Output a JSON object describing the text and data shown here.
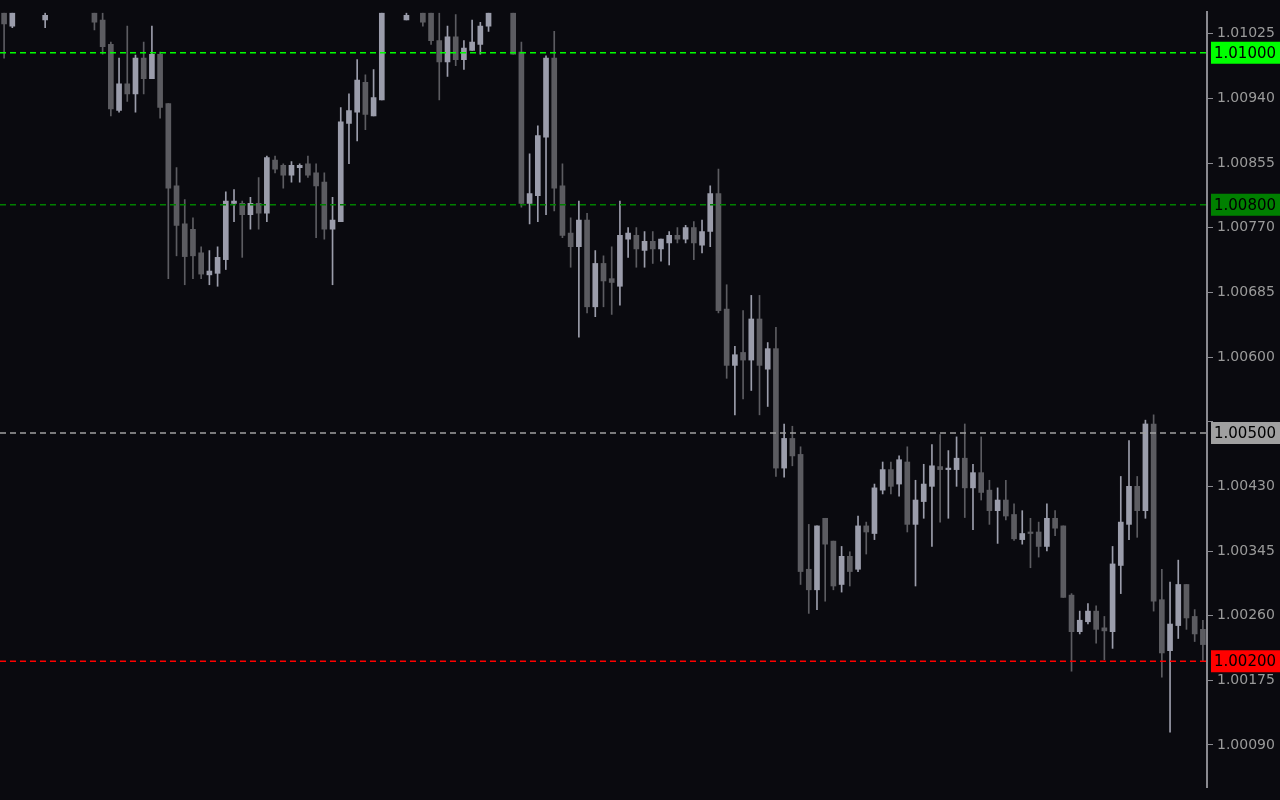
{
  "chart_data": {
    "type": "candlestick",
    "categories": [
      null,
      null,
      null,
      null,
      null,
      null,
      null,
      null,
      null,
      null,
      null,
      null,
      null,
      null,
      null,
      null,
      null,
      null,
      null,
      null,
      null,
      null,
      null,
      null,
      null,
      null,
      null,
      null,
      null,
      null,
      null,
      null,
      null,
      null,
      null,
      null,
      null,
      null,
      null,
      null,
      null,
      null,
      null,
      null,
      null,
      null,
      null,
      null,
      null,
      null,
      null,
      null,
      null,
      null,
      null,
      null,
      null,
      null,
      null,
      null,
      null,
      null,
      null,
      null,
      null,
      null,
      null,
      null,
      null,
      null,
      null,
      null,
      null,
      null,
      null,
      null,
      null,
      null,
      null,
      null,
      null,
      null,
      null,
      null,
      null,
      null,
      null,
      null,
      null,
      null,
      null,
      null,
      null,
      null,
      null,
      null,
      null,
      null,
      null,
      null,
      null,
      null,
      null,
      null,
      null,
      null,
      null,
      null,
      null,
      null,
      null,
      null,
      null,
      null,
      null,
      null,
      null,
      null,
      null,
      null,
      null,
      null,
      null,
      null,
      null,
      null,
      null,
      null,
      null,
      null,
      null,
      null,
      null,
      null,
      null,
      null,
      null,
      null,
      null,
      null,
      null,
      null,
      null,
      null,
      null,
      null,
      null
    ],
    "ohlc": [
      [
        1.01052,
        1.01052,
        1.00993,
        1.01038
      ],
      [
        1.01035,
        1.01052,
        1.01033,
        1.01052
      ],
      null,
      null,
      null,
      [
        1.01043,
        1.01052,
        1.01033,
        1.01049
      ],
      null,
      null,
      null,
      null,
      null,
      [
        1.01052,
        1.01052,
        1.0103,
        1.0104
      ],
      [
        1.01043,
        1.01052,
        1.00998,
        1.01008
      ],
      [
        1.01011,
        1.01014,
        1.00917,
        1.00926
      ],
      [
        1.00924,
        1.00993,
        1.00922,
        1.00959
      ],
      [
        1.00959,
        1.01035,
        1.00936,
        1.00946
      ],
      [
        1.00946,
        1.00997,
        1.00922,
        1.00993
      ],
      [
        1.00993,
        1.01014,
        1.00946,
        1.00966
      ],
      [
        1.00966,
        1.01035,
        1.00966,
        1.00998
      ],
      [
        1.00998,
        1.01001,
        1.00914,
        1.00928
      ],
      [
        1.00933,
        1.00933,
        1.00703,
        1.00822
      ],
      [
        1.00825,
        1.00849,
        1.00733,
        1.00773
      ],
      [
        1.00775,
        1.00807,
        1.00695,
        1.00732
      ],
      [
        1.00768,
        1.00783,
        1.00703,
        1.00733
      ],
      [
        1.00737,
        1.00745,
        1.00703,
        1.00709
      ],
      [
        1.00708,
        1.0074,
        1.00695,
        1.00713
      ],
      [
        1.0071,
        1.00745,
        1.00693,
        1.00731
      ],
      [
        1.00728,
        1.00817,
        1.00715,
        1.00805
      ],
      [
        1.00802,
        1.0082,
        1.00778,
        1.00805
      ],
      [
        1.00802,
        1.00805,
        1.00731,
        1.00787
      ],
      [
        1.00787,
        1.0081,
        1.00768,
        1.00802
      ],
      [
        1.00802,
        1.00836,
        1.00768,
        1.00789
      ],
      [
        1.00789,
        1.00864,
        1.00778,
        1.00862
      ],
      [
        1.00859,
        1.00864,
        1.00842,
        1.00847
      ],
      [
        1.00852,
        1.00854,
        1.00822,
        1.00839
      ],
      [
        1.00839,
        1.00857,
        1.0083,
        1.00852
      ],
      [
        1.00849,
        1.00854,
        1.0083,
        1.00852
      ],
      [
        1.00854,
        1.00864,
        1.00836,
        1.00839
      ],
      [
        1.00842,
        1.00854,
        1.00757,
        1.00825
      ],
      [
        1.0083,
        1.00842,
        1.00755,
        1.00768
      ],
      [
        1.00768,
        1.0081,
        1.00695,
        1.0078
      ],
      [
        1.00778,
        1.00928,
        1.00778,
        1.00909
      ],
      [
        1.00907,
        1.00946,
        1.00854,
        1.00924
      ],
      [
        1.00922,
        1.00991,
        1.00884,
        1.00964
      ],
      [
        1.00961,
        1.00971,
        1.00899,
        1.00919
      ],
      [
        1.00917,
        1.00978,
        1.00917,
        1.00941
      ],
      [
        1.00938,
        1.01052,
        1.00938,
        1.01052
      ],
      null,
      null,
      [
        1.01043,
        1.01052,
        1.01043,
        1.01049
      ],
      null,
      [
        1.01052,
        1.01052,
        1.01035,
        1.0104
      ],
      [
        1.01052,
        1.01052,
        1.01011,
        1.01016
      ],
      [
        1.01016,
        1.01052,
        1.00938,
        1.00988
      ],
      [
        1.00988,
        1.01035,
        1.00969,
        1.01021
      ],
      [
        1.01021,
        1.0105,
        1.00983,
        1.00991
      ],
      [
        1.00991,
        1.01016,
        1.00978,
        1.01006
      ],
      [
        1.01003,
        1.01043,
        1.01003,
        1.01014
      ],
      [
        1.01011,
        1.0104,
        1.00998,
        1.01035
      ],
      [
        1.01035,
        1.01052,
        1.01028,
        1.01052
      ],
      null,
      null,
      [
        1.01052,
        1.01052,
        1.00998,
        1.00998
      ],
      [
        1.01001,
        1.01014,
        1.00797,
        1.00802
      ],
      [
        1.00802,
        1.00867,
        1.00775,
        1.00815
      ],
      [
        1.00812,
        1.00904,
        1.00778,
        1.00891
      ],
      [
        1.00889,
        1.00996,
        1.00787,
        1.00993
      ],
      [
        1.00993,
        1.01028,
        1.00792,
        1.00822
      ],
      [
        1.00825,
        1.00854,
        1.00757,
        1.0076
      ],
      [
        1.00763,
        1.00783,
        1.00718,
        1.00745
      ],
      [
        1.00745,
        1.00805,
        1.00626,
        1.0078
      ],
      [
        1.0078,
        1.00789,
        1.00658,
        1.00666
      ],
      [
        1.00666,
        1.0074,
        1.00653,
        1.00723
      ],
      [
        1.00723,
        1.00733,
        1.00666,
        1.007
      ],
      [
        1.00703,
        1.00745,
        1.00656,
        1.00698
      ],
      [
        1.00693,
        1.00805,
        1.00668,
        1.0076
      ],
      [
        1.00755,
        1.0077,
        1.00731,
        1.00763
      ],
      [
        1.0076,
        1.0077,
        1.00718,
        1.00742
      ],
      [
        1.0074,
        1.00765,
        1.00718,
        1.00752
      ],
      [
        1.00752,
        1.00765,
        1.00723,
        1.00742
      ],
      [
        1.00742,
        1.00755,
        1.00726,
        1.00755
      ],
      [
        1.0075,
        1.00765,
        1.00721,
        1.0076
      ],
      [
        1.0076,
        1.0077,
        1.0075,
        1.00755
      ],
      [
        1.00755,
        1.00773,
        1.0075,
        1.0077
      ],
      [
        1.0077,
        1.00778,
        1.00728,
        1.0075
      ],
      [
        1.00747,
        1.0078,
        1.00737,
        1.00765
      ],
      [
        1.00765,
        1.00825,
        1.00745,
        1.00815
      ],
      [
        1.00815,
        1.00847,
        1.00658,
        1.00661
      ],
      [
        1.00663,
        1.00695,
        1.00572,
        1.00589
      ],
      [
        1.00589,
        1.00614,
        1.00524,
        1.00603
      ],
      [
        1.00606,
        1.00661,
        1.00545,
        1.00596
      ],
      [
        1.00596,
        1.00681,
        1.00556,
        1.0065
      ],
      [
        1.0065,
        1.00681,
        1.00524,
        1.00589
      ],
      [
        1.00584,
        1.00619,
        1.00535,
        1.00611
      ],
      [
        1.00611,
        1.00639,
        1.00443,
        1.00454
      ],
      [
        1.00454,
        1.00512,
        1.00442,
        1.00493
      ],
      [
        1.00493,
        1.00509,
        1.00457,
        1.0047
      ],
      [
        1.00472,
        1.00482,
        1.00301,
        1.00318
      ],
      [
        1.00321,
        1.0038,
        1.00263,
        1.00294
      ],
      [
        1.00294,
        1.00378,
        1.00268,
        1.00378
      ],
      [
        1.00388,
        1.00388,
        1.00279,
        1.00354
      ],
      [
        1.00358,
        1.00358,
        1.00294,
        1.00299
      ],
      [
        1.00301,
        1.00351,
        1.00291,
        1.00338
      ],
      [
        1.00338,
        1.00344,
        1.00299,
        1.00318
      ],
      [
        1.00321,
        1.00391,
        1.00318,
        1.00378
      ],
      [
        1.00378,
        1.00383,
        1.00341,
        1.0037
      ],
      [
        1.00368,
        1.00433,
        1.0036,
        1.00428
      ],
      [
        1.00425,
        1.00462,
        1.0042,
        1.00452
      ],
      [
        1.00452,
        1.00462,
        1.0042,
        1.0043
      ],
      [
        1.00433,
        1.0047,
        1.00417,
        1.00465
      ],
      [
        1.00462,
        1.00482,
        1.0037,
        1.0038
      ],
      [
        1.0038,
        1.00438,
        1.00299,
        1.00412
      ],
      [
        1.0041,
        1.00459,
        1.00388,
        1.00433
      ],
      [
        1.0043,
        1.00485,
        1.00351,
        1.00457
      ],
      [
        1.00456,
        1.00498,
        1.00383,
        1.00452
      ],
      [
        1.00452,
        1.00477,
        1.00388,
        1.00454
      ],
      [
        1.00452,
        1.00495,
        1.0043,
        1.00467
      ],
      [
        1.00467,
        1.00512,
        1.00389,
        1.00428
      ],
      [
        1.00428,
        1.00459,
        1.00373,
        1.00448
      ],
      [
        1.00448,
        1.00495,
        1.00412,
        1.00422
      ],
      [
        1.00425,
        1.00438,
        1.0038,
        1.00398
      ],
      [
        1.00398,
        1.00428,
        1.00355,
        1.00412
      ],
      [
        1.00412,
        1.00438,
        1.00386,
        1.00391
      ],
      [
        1.00393,
        1.00407,
        1.00359,
        1.00361
      ],
      [
        1.0036,
        1.00398,
        1.00354,
        1.00368
      ],
      [
        1.0037,
        1.00388,
        1.00323,
        1.00368
      ],
      [
        1.0037,
        1.00383,
        1.00337,
        1.00351
      ],
      [
        1.00351,
        1.00407,
        1.00345,
        1.00388
      ],
      [
        1.00388,
        1.00398,
        1.00365,
        1.00375
      ],
      [
        1.00378,
        1.00378,
        1.00284,
        1.00284
      ],
      [
        1.00287,
        1.00289,
        1.00187,
        1.00239
      ],
      [
        1.00239,
        1.00266,
        1.00236,
        1.00254
      ],
      [
        1.00252,
        1.00276,
        1.00249,
        1.00266
      ],
      [
        1.00266,
        1.00273,
        1.00224,
        1.00242
      ],
      [
        1.00244,
        1.00259,
        1.00202,
        1.0024
      ],
      [
        1.00239,
        1.00351,
        1.00217,
        1.00328
      ],
      [
        1.00326,
        1.00443,
        1.00289,
        1.00383
      ],
      [
        1.0038,
        1.0049,
        1.0036,
        1.0043
      ],
      [
        1.0043,
        1.00443,
        1.00363,
        1.00398
      ],
      [
        1.00398,
        1.00517,
        1.00388,
        1.00512
      ],
      [
        1.00512,
        1.00524,
        1.00266,
        1.00279
      ],
      [
        1.00281,
        1.00321,
        1.00179,
        1.00211
      ],
      [
        1.00214,
        1.00304,
        1.00107,
        1.00249
      ],
      [
        1.00247,
        1.00333,
        1.0023,
        1.00301
      ],
      [
        1.00301,
        1.00301,
        1.00242,
        1.00257
      ],
      [
        1.00259,
        1.00268,
        1.00226,
        1.00236
      ],
      [
        1.00242,
        1.00254,
        1.002,
        1.00222
      ]
    ],
    "colors": [
      "#5c5c61",
      "#9b9dab",
      null,
      null,
      null,
      "#9b9dab",
      null,
      null,
      null,
      null,
      null,
      "#5c5c61",
      "#5c5c61",
      "#5c5c61",
      "#9b9dab",
      "#5c5c61",
      "#9b9dab",
      "#5c5c61",
      "#9b9dab",
      "#5c5c61",
      "#5c5c61",
      "#5c5c61",
      "#5c5c61",
      "#5c5c61",
      "#5c5c61",
      "#9b9dab",
      "#9b9dab",
      "#9b9dab",
      "#9b9dab",
      "#5c5c61",
      "#9b9dab",
      "#5c5c61",
      "#9b9dab",
      "#5c5c61",
      "#5c5c61",
      "#9b9dab",
      "#9b9dab",
      "#5c5c61",
      "#5c5c61",
      "#5c5c61",
      "#9b9dab",
      "#9b9dab",
      "#9b9dab",
      "#9b9dab",
      "#5c5c61",
      "#9b9dab",
      "#9b9dab",
      null,
      null,
      "#9b9dab",
      null,
      "#5c5c61",
      "#5c5c61",
      "#5c5c61",
      "#9b9dab",
      "#5c5c61",
      "#9b9dab",
      "#9b9dab",
      "#9b9dab",
      "#9b9dab",
      null,
      null,
      "#5c5c61",
      "#5c5c61",
      "#9b9dab",
      "#9b9dab",
      "#9b9dab",
      "#5c5c61",
      "#5c5c61",
      "#5c5c61",
      "#9b9dab",
      "#5c5c61",
      "#9b9dab",
      "#5c5c61",
      "#5c5c61",
      "#9b9dab",
      "#9b9dab",
      "#5c5c61",
      "#9b9dab",
      "#5c5c61",
      "#9b9dab",
      "#9b9dab",
      "#5c5c61",
      "#9b9dab",
      "#5c5c61",
      "#9b9dab",
      "#9b9dab",
      "#5c5c61",
      "#5c5c61",
      "#9b9dab",
      "#5c5c61",
      "#9b9dab",
      "#5c5c61",
      "#9b9dab",
      "#5c5c61",
      "#9b9dab",
      "#5c5c61",
      "#5c5c61",
      "#5c5c61",
      "#9b9dab",
      "#5c5c61",
      "#5c5c61",
      "#9b9dab",
      "#5c5c61",
      "#9b9dab",
      "#5c5c61",
      "#9b9dab",
      "#9b9dab",
      "#5c5c61",
      "#9b9dab",
      "#5c5c61",
      "#9b9dab",
      "#9b9dab",
      "#9b9dab",
      "#5c5c61",
      "#9b9dab",
      "#9b9dab",
      "#5c5c61",
      "#9b9dab",
      "#5c5c61",
      "#5c5c61",
      "#9b9dab",
      "#5c5c61",
      "#5c5c61",
      "#9b9dab",
      "#5c5c61",
      "#5c5c61",
      "#9b9dab",
      "#5c5c61",
      "#5c5c61",
      "#5c5c61",
      "#9b9dab",
      "#9b9dab",
      "#5c5c61",
      "#5c5c61",
      "#9b9dab",
      "#9b9dab",
      "#9b9dab",
      "#5c5c61",
      "#9b9dab",
      "#5c5c61",
      "#5c5c61",
      "#9b9dab",
      "#9b9dab",
      "#5c5c61",
      "#5c5c61",
      "#5c5c61"
    ],
    "ylim": [
      1.00034,
      1.01053
    ],
    "yticks": [
      {
        "value": 1.01025,
        "label": "1.01025"
      },
      {
        "value": 1.0094,
        "label": "1.00940"
      },
      {
        "value": 1.00855,
        "label": "1.00855"
      },
      {
        "value": 1.0077,
        "label": "1.00770"
      },
      {
        "value": 1.00685,
        "label": "1.00685"
      },
      {
        "value": 1.006,
        "label": "1.00600"
      },
      {
        "value": 1.00515,
        "label": null
      },
      {
        "value": 1.0043,
        "label": "1.00430"
      },
      {
        "value": 1.00345,
        "label": "1.00345"
      },
      {
        "value": 1.0026,
        "label": "1.00260"
      },
      {
        "value": 1.00175,
        "label": "1.00175"
      },
      {
        "value": 1.0009,
        "label": "1.00090"
      }
    ],
    "ref_lines": [
      {
        "axis": "y",
        "value": 1.01,
        "label": "1.01000",
        "color": "#00ff00",
        "line_style": "dashed"
      },
      {
        "axis": "y",
        "value": 1.008,
        "label": "1.00800",
        "color": "#008000",
        "line_style": "dashed"
      },
      {
        "axis": "y",
        "value": 1.005,
        "label": "1.00500",
        "color": "#a0a0a0",
        "line_style": "dashed"
      },
      {
        "axis": "y",
        "value": 1.002,
        "label": "1.00200",
        "color": "#ff0000",
        "line_style": "dashed"
      }
    ],
    "tick_labels": "y",
    "grid": false,
    "legend": false
  }
}
